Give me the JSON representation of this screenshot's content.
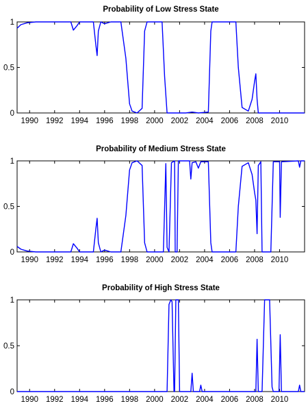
{
  "chart_data": [
    {
      "type": "line",
      "title": "Probability of Low Stress State",
      "xlim": [
        1989,
        2012
      ],
      "ylim": [
        0,
        1
      ],
      "xticks": [
        1990,
        1992,
        1994,
        1996,
        1998,
        2000,
        2002,
        2004,
        2006,
        2008,
        2010
      ],
      "yticks": [
        0,
        0.5,
        1
      ],
      "ytick_labels": [
        "0",
        "0.5",
        "1"
      ],
      "grid": false,
      "series": [
        {
          "color": "#0000ff",
          "points": [
            [
              1989,
              0.93
            ],
            [
              1989.3,
              0.97
            ],
            [
              1989.8,
              0.99
            ],
            [
              1990.5,
              1
            ],
            [
              1993.3,
              1
            ],
            [
              1993.5,
              0.91
            ],
            [
              1993.8,
              0.96
            ],
            [
              1994,
              1
            ],
            [
              1995.1,
              1
            ],
            [
              1995.3,
              0.75
            ],
            [
              1995.4,
              0.63
            ],
            [
              1995.5,
              0.9
            ],
            [
              1995.7,
              1
            ],
            [
              1996,
              0.98
            ],
            [
              1996.5,
              1
            ],
            [
              1997.3,
              1
            ],
            [
              1997.7,
              0.6
            ],
            [
              1998,
              0.1
            ],
            [
              1998.2,
              0.02
            ],
            [
              1998.6,
              0
            ],
            [
              1999,
              0.05
            ],
            [
              1999.2,
              0.9
            ],
            [
              1999.4,
              1
            ],
            [
              2000.6,
              1
            ],
            [
              2000.8,
              0.4
            ],
            [
              2001,
              0
            ],
            [
              2002.5,
              0
            ],
            [
              2003,
              0.01
            ],
            [
              2003.5,
              0
            ],
            [
              2004.3,
              0.01
            ],
            [
              2004.5,
              0.9
            ],
            [
              2004.6,
              1
            ],
            [
              2006.5,
              1
            ],
            [
              2006.7,
              0.5
            ],
            [
              2007,
              0.06
            ],
            [
              2007.5,
              0.02
            ],
            [
              2007.8,
              0.15
            ],
            [
              2008,
              0.35
            ],
            [
              2008.1,
              0.43
            ],
            [
              2008.2,
              0.15
            ],
            [
              2008.3,
              0
            ],
            [
              2012,
              0
            ]
          ]
        }
      ]
    },
    {
      "type": "line",
      "title": "Probability of Medium Stress State",
      "xlim": [
        1989,
        2012
      ],
      "ylim": [
        0,
        1
      ],
      "xticks": [
        1990,
        1992,
        1994,
        1996,
        1998,
        2000,
        2002,
        2004,
        2006,
        2008,
        2010
      ],
      "yticks": [
        0,
        0.5,
        1
      ],
      "ytick_labels": [
        "0",
        "0.5",
        "1"
      ],
      "grid": false,
      "series": [
        {
          "color": "#0000ff",
          "points": [
            [
              1989,
              0.06
            ],
            [
              1989.3,
              0.03
            ],
            [
              1989.8,
              0.01
            ],
            [
              1990.5,
              0
            ],
            [
              1993.3,
              0
            ],
            [
              1993.5,
              0.09
            ],
            [
              1993.8,
              0.04
            ],
            [
              1994,
              0
            ],
            [
              1995.1,
              0
            ],
            [
              1995.3,
              0.25
            ],
            [
              1995.4,
              0.37
            ],
            [
              1995.5,
              0.1
            ],
            [
              1995.7,
              0
            ],
            [
              1996,
              0.02
            ],
            [
              1996.5,
              0
            ],
            [
              1997.3,
              0
            ],
            [
              1997.7,
              0.4
            ],
            [
              1998,
              0.9
            ],
            [
              1998.2,
              0.98
            ],
            [
              1998.6,
              1
            ],
            [
              1999,
              0.95
            ],
            [
              1999.2,
              0.1
            ],
            [
              1999.4,
              0
            ],
            [
              2000.7,
              0
            ],
            [
              2000.9,
              0.97
            ],
            [
              2001,
              0.05
            ],
            [
              2001.15,
              0
            ],
            [
              2001.35,
              0.98
            ],
            [
              2001.6,
              1
            ],
            [
              2001.65,
              0
            ],
            [
              2001.8,
              0
            ],
            [
              2001.9,
              1
            ],
            [
              2002.8,
              1
            ],
            [
              2002.9,
              0.8
            ],
            [
              2003,
              0.98
            ],
            [
              2003.3,
              0.99
            ],
            [
              2003.5,
              0.92
            ],
            [
              2003.7,
              0.99
            ],
            [
              2004.3,
              0.99
            ],
            [
              2004.5,
              0.1
            ],
            [
              2004.6,
              0
            ],
            [
              2006.5,
              0
            ],
            [
              2006.7,
              0.5
            ],
            [
              2007,
              0.94
            ],
            [
              2007.5,
              0.98
            ],
            [
              2007.8,
              0.85
            ],
            [
              2008,
              0.65
            ],
            [
              2008.1,
              0.57
            ],
            [
              2008.2,
              0.2
            ],
            [
              2008.3,
              0.95
            ],
            [
              2008.5,
              0.99
            ],
            [
              2008.6,
              0
            ],
            [
              2009.3,
              0
            ],
            [
              2009.5,
              0.99
            ],
            [
              2010,
              0.99
            ],
            [
              2010.05,
              0.38
            ],
            [
              2010.15,
              0.99
            ],
            [
              2011.5,
              1
            ],
            [
              2011.6,
              0.93
            ],
            [
              2011.7,
              1
            ],
            [
              2012,
              1
            ]
          ]
        }
      ]
    },
    {
      "type": "line",
      "title": "Probability of High Stress State",
      "xlim": [
        1989,
        2012
      ],
      "ylim": [
        0,
        1
      ],
      "xticks": [
        1990,
        1992,
        1994,
        1996,
        1998,
        2000,
        2002,
        2004,
        2006,
        2008,
        2010
      ],
      "yticks": [
        0,
        0.5,
        1
      ],
      "ytick_labels": [
        "0",
        "0.5",
        "1"
      ],
      "grid": false,
      "series": [
        {
          "color": "#0000ff",
          "points": [
            [
              1989,
              0
            ],
            [
              2001,
              0
            ],
            [
              2001.15,
              0.95
            ],
            [
              2001.3,
              1
            ],
            [
              2001.4,
              0.98
            ],
            [
              2001.55,
              0
            ],
            [
              2001.6,
              0
            ],
            [
              2001.7,
              1
            ],
            [
              2001.9,
              1
            ],
            [
              2002,
              0
            ],
            [
              2002.9,
              0
            ],
            [
              2003,
              0.2
            ],
            [
              2003.1,
              0
            ],
            [
              2003.6,
              0
            ],
            [
              2003.7,
              0.07
            ],
            [
              2003.8,
              0
            ],
            [
              2008.1,
              0
            ],
            [
              2008.2,
              0.57
            ],
            [
              2008.3,
              0
            ],
            [
              2008.6,
              0
            ],
            [
              2008.8,
              1
            ],
            [
              2009.2,
              1
            ],
            [
              2009.4,
              0.05
            ],
            [
              2009.5,
              0
            ],
            [
              2009.95,
              0
            ],
            [
              2010.05,
              0.62
            ],
            [
              2010.15,
              0
            ],
            [
              2011.5,
              0
            ],
            [
              2011.6,
              0.07
            ],
            [
              2011.7,
              0
            ],
            [
              2012,
              0
            ]
          ]
        }
      ]
    }
  ]
}
